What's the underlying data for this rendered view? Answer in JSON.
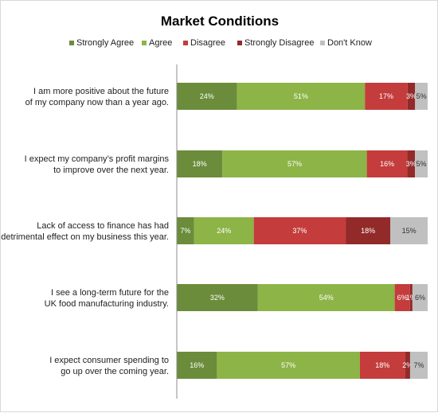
{
  "chart_data": {
    "type": "bar",
    "orientation": "horizontal",
    "stacked": "percent",
    "title": "Market Conditions",
    "xlabel": "",
    "ylabel": "",
    "xlim": [
      0,
      100
    ],
    "grid": false,
    "legend_position": "top",
    "categories": [
      [
        "I am more positive about the future",
        "of my company now than a year ago."
      ],
      [
        "I expect my company’s profit margins",
        "to improve over the next year."
      ],
      [
        "Lack of access to finance has had",
        "a detrimental effect on my business this year."
      ],
      [
        "I see a long-term future for the",
        "UK food manufacturing industry."
      ],
      [
        "I expect consumer spending to",
        "go up over the coming year."
      ]
    ],
    "series": [
      {
        "name": "Strongly Agree",
        "color": "#6b8c3a",
        "text_color": "#ffffff",
        "values": [
          24,
          18,
          7,
          32,
          16
        ]
      },
      {
        "name": "Agree",
        "color": "#8db446",
        "text_color": "#ffffff",
        "values": [
          51,
          57,
          24,
          54,
          57
        ]
      },
      {
        "name": "Disagree",
        "color": "#c43c3c",
        "text_color": "#ffffff",
        "values": [
          17,
          16,
          37,
          6,
          18
        ]
      },
      {
        "name": "Strongly Disagree",
        "color": "#932a2a",
        "text_color": "#ffffff",
        "values": [
          3,
          3,
          18,
          1,
          2
        ]
      },
      {
        "name": "Don't Know",
        "color": "#c0c0c0",
        "text_color": "#333333",
        "values": [
          5,
          5,
          15,
          6,
          7
        ]
      }
    ]
  }
}
